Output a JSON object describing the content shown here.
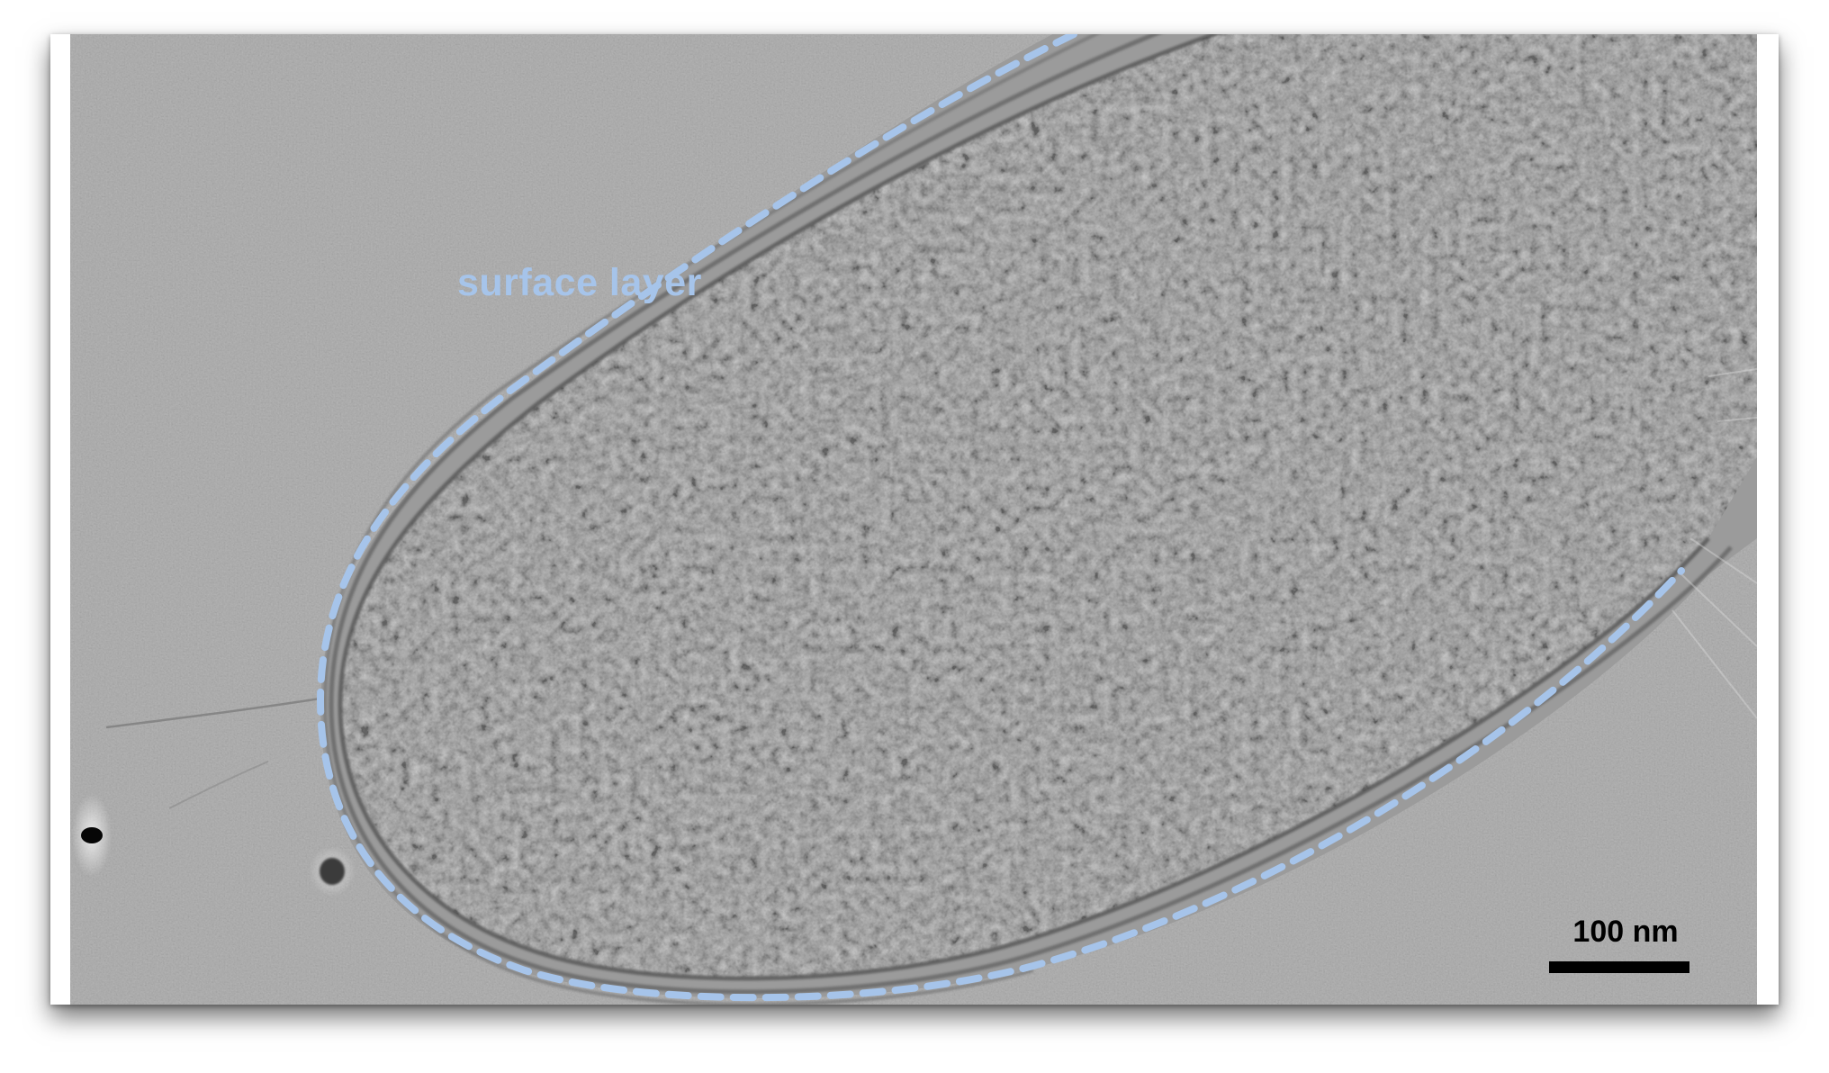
{
  "annotation": {
    "label": "surface layer",
    "color": "#a6c4ea"
  },
  "scale_bar": {
    "label": "100 nm",
    "color": "#000000"
  }
}
